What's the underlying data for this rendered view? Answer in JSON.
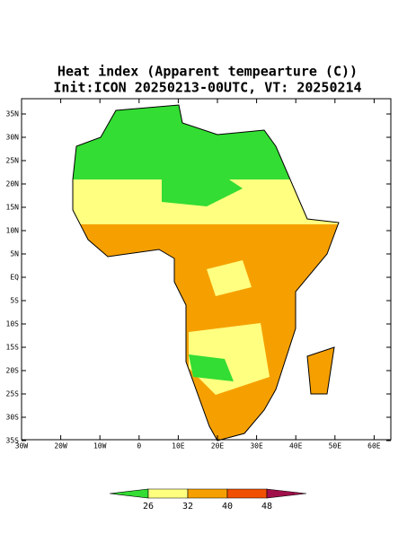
{
  "title": "Heat index (Apparent tempearture (C))",
  "subtitle": "Init:ICON 20250213-00UTC, VT: 20250214",
  "lat_ticks": [
    "35N",
    "30N",
    "25N",
    "20N",
    "15N",
    "10N",
    "5N",
    "EQ",
    "5S",
    "10S",
    "15S",
    "20S",
    "25S",
    "30S",
    "35S"
  ],
  "lon_ticks": [
    "30W",
    "20W",
    "10W",
    "0",
    "10E",
    "20E",
    "30E",
    "40E",
    "50E",
    "60E"
  ],
  "colorbar": {
    "levels": [
      26,
      32,
      40,
      48
    ],
    "colors": [
      "#33dd33",
      "#ffff80",
      "#f5a000",
      "#f05000",
      "#a0104a"
    ]
  }
}
